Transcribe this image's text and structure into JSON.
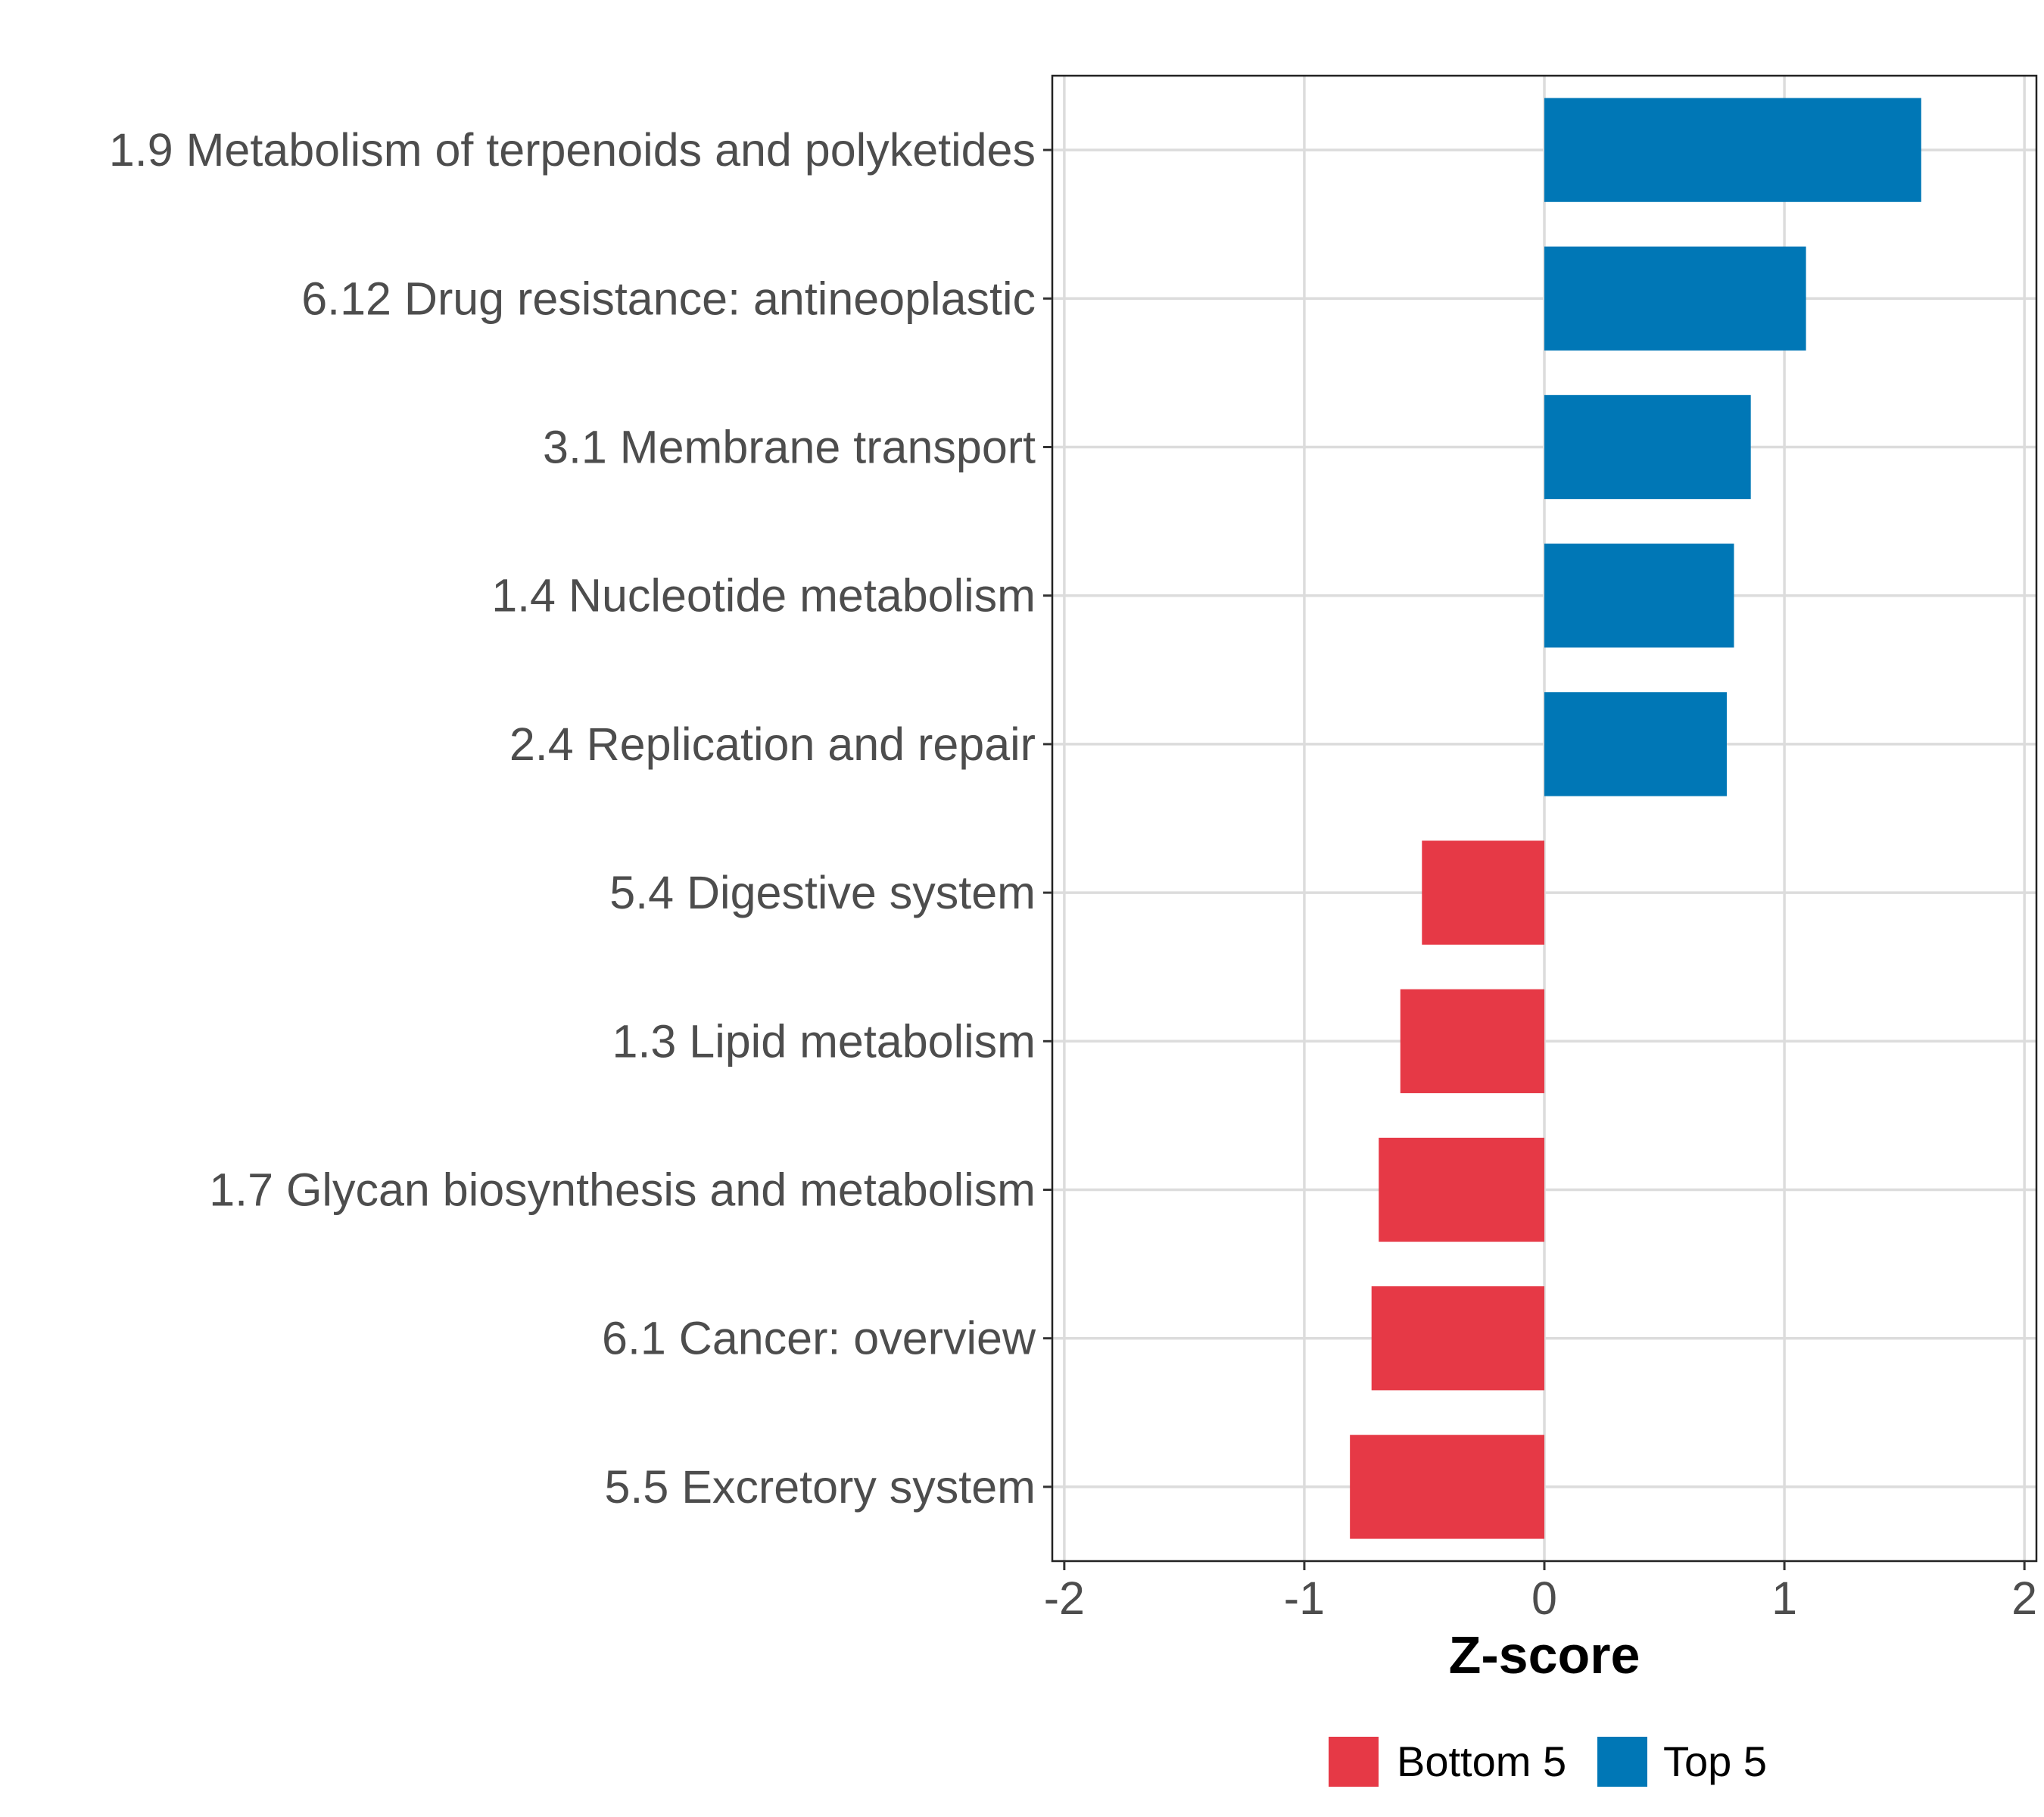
{
  "chart_data": {
    "type": "bar",
    "orientation": "horizontal",
    "categories": [
      "1.9 Metabolism of terpenoids and polyketides",
      "6.12 Drug resistance: antineoplastic",
      "3.1 Membrane transport",
      "1.4 Nucleotide metabolism",
      "2.4 Replication and repair",
      "5.4 Digestive system",
      "1.3 Lipid metabolism",
      "1.7 Glycan biosynthesis and metabolism",
      "6.1 Cancer: overview",
      "5.5 Excretory system"
    ],
    "values": [
      1.57,
      1.09,
      0.86,
      0.79,
      0.76,
      -0.51,
      -0.6,
      -0.69,
      -0.72,
      -0.81
    ],
    "groups": [
      "Top 5",
      "Top 5",
      "Top 5",
      "Top 5",
      "Top 5",
      "Bottom 5",
      "Bottom 5",
      "Bottom 5",
      "Bottom 5",
      "Bottom 5"
    ],
    "xlabel": "Z-score",
    "ylabel": "",
    "xlim": [
      -2.05,
      2.05
    ],
    "xticks": [
      -2,
      -1,
      0,
      1,
      2
    ],
    "xtick_labels": [
      "-2",
      "-1",
      "0",
      "1",
      "2"
    ],
    "grid": true,
    "legend": {
      "position": "bottom",
      "entries": [
        {
          "label": "Bottom 5",
          "color": "#E63946"
        },
        {
          "label": "Top 5",
          "color": "#0077B6"
        }
      ]
    }
  }
}
